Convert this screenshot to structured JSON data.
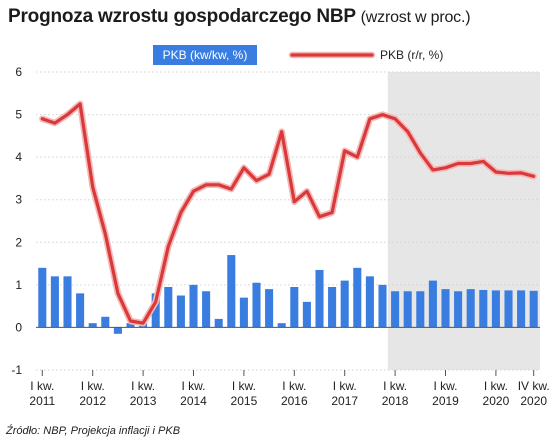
{
  "title": "Prognoza wzrostu gospodarczego NBP",
  "subtitle": "(wzrost w proc.)",
  "source": "Źródło: NBP, Projekcja inflacji i PKB",
  "colors": {
    "bar": "#3a7de0",
    "line": "#d9393b",
    "lineHalo": "#f4b9b7",
    "projectionShade": "#e6e6e6",
    "grid": "#d2d2d2"
  },
  "chart_data": {
    "type": "bar+line",
    "ylim": [
      -1,
      6
    ],
    "yticks": [
      "-1",
      "0",
      "1",
      "2",
      "3",
      "4",
      "5",
      "6"
    ],
    "xtick_labels": [
      {
        "index": 0,
        "quarter": "I kw.",
        "year": "2011"
      },
      {
        "index": 4,
        "quarter": "I kw.",
        "year": "2012"
      },
      {
        "index": 8,
        "quarter": "I kw.",
        "year": "2013"
      },
      {
        "index": 12,
        "quarter": "I kw.",
        "year": "2014"
      },
      {
        "index": 16,
        "quarter": "I kw.",
        "year": "2015"
      },
      {
        "index": 20,
        "quarter": "I kw.",
        "year": "2016"
      },
      {
        "index": 24,
        "quarter": "I kw.",
        "year": "2017"
      },
      {
        "index": 28,
        "quarter": "I kw.",
        "year": "2018"
      },
      {
        "index": 32,
        "quarter": "I kw.",
        "year": "2019"
      },
      {
        "index": 36,
        "quarter": "I kw.",
        "year": "2020"
      },
      {
        "index": 39,
        "quarter": "IV kw.",
        "year": "2020"
      }
    ],
    "projection_start_index": 28,
    "legend_position": "top",
    "series": [
      {
        "name": "PKB (kw/kw, %)",
        "kind": "bar",
        "values": [
          1.4,
          1.2,
          1.2,
          0.8,
          0.1,
          0.25,
          -0.15,
          0.1,
          0.1,
          0.8,
          0.95,
          0.75,
          1.0,
          0.85,
          0.2,
          1.7,
          0.7,
          1.05,
          0.9,
          0.1,
          0.95,
          0.6,
          1.35,
          0.95,
          1.1,
          1.4,
          1.2,
          1.0,
          0.85,
          0.85,
          0.85,
          1.1,
          0.9,
          0.85,
          0.9,
          0.88,
          0.87,
          0.87,
          0.87,
          0.86
        ]
      },
      {
        "name": "PKB (r/r, %)",
        "kind": "line",
        "values": [
          4.9,
          4.8,
          5.0,
          5.25,
          3.3,
          2.2,
          0.8,
          0.15,
          0.1,
          0.6,
          1.9,
          2.7,
          3.2,
          3.35,
          3.35,
          3.25,
          3.75,
          3.45,
          3.6,
          4.6,
          2.95,
          3.2,
          2.6,
          2.7,
          4.15,
          4.0,
          4.9,
          5.0,
          4.9,
          4.6,
          4.1,
          3.7,
          3.75,
          3.85,
          3.85,
          3.9,
          3.65,
          3.62,
          3.63,
          3.55
        ]
      }
    ]
  }
}
